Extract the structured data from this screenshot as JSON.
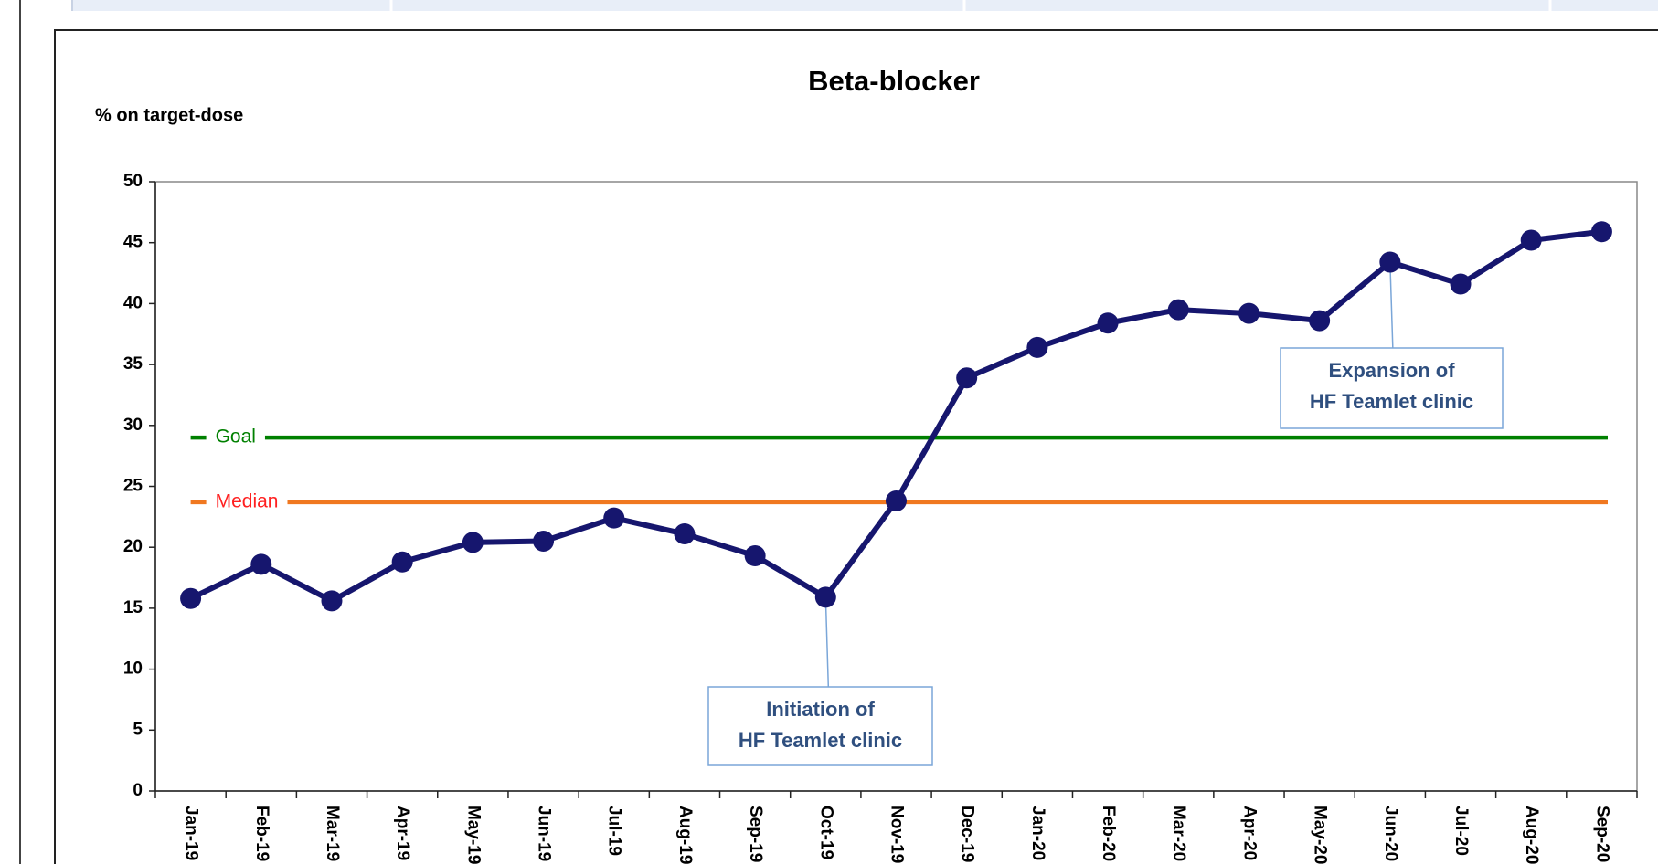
{
  "chart_data": {
    "type": "line",
    "title": "Beta-blocker",
    "y_label": "% on target-dose",
    "categories": [
      "Jan-19",
      "Feb-19",
      "Mar-19",
      "Apr-19",
      "May-19",
      "Jun-19",
      "Jul-19",
      "Aug-19",
      "Sep-19",
      "Oct-19",
      "Nov-19",
      "Dec-19",
      "Jan-20",
      "Feb-20",
      "Mar-20",
      "Apr-20",
      "May-20",
      "Jun-20",
      "Jul-20",
      "Aug-20",
      "Sep-20"
    ],
    "series": [
      {
        "name": "Beta-blocker",
        "color": "#16166e",
        "values": [
          15.8,
          18.6,
          15.6,
          18.8,
          20.4,
          20.5,
          22.4,
          21.1,
          19.3,
          15.9,
          23.8,
          33.9,
          36.4,
          38.4,
          39.5,
          39.2,
          38.6,
          43.4,
          41.6,
          45.2,
          45.9
        ]
      }
    ],
    "ylim": [
      0,
      50
    ],
    "yticks": [
      0,
      5,
      10,
      15,
      20,
      25,
      30,
      35,
      40,
      45,
      50
    ],
    "reference_lines": [
      {
        "name": "Goal",
        "value": 29,
        "color": "#008000"
      },
      {
        "name": "Median",
        "value": 23.7,
        "color": "#f07820",
        "label_color": "#ff2020"
      }
    ],
    "annotations": [
      {
        "lines": [
          "Initiation of",
          "HF Teamlet clinic"
        ]
      },
      {
        "lines": [
          "Expansion of",
          "HF Teamlet clinic"
        ]
      }
    ]
  }
}
